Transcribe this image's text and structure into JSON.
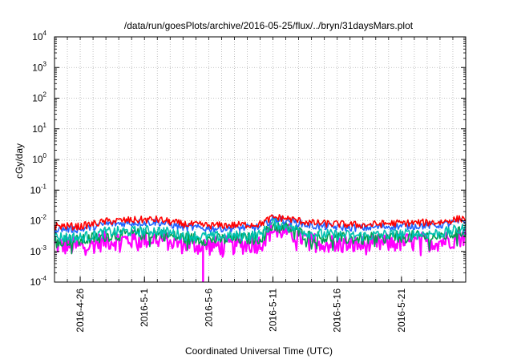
{
  "chart_data": {
    "type": "line",
    "title": "/data/run/goesPlots/archive/2016-05-25/flux/../bryn/31daysMars.plot",
    "xlabel": "Coordinated Universal Time (UTC)",
    "ylabel": "cGy/day",
    "yscale": "log",
    "ylim": [
      0.0001,
      10000
    ],
    "y_ticks": [
      {
        "base": "10",
        "exp": "-4",
        "value": 0.0001
      },
      {
        "base": "10",
        "exp": "-3",
        "value": 0.001
      },
      {
        "base": "10",
        "exp": "-2",
        "value": 0.01
      },
      {
        "base": "10",
        "exp": "-1",
        "value": 0.1
      },
      {
        "base": "10",
        "exp": "0",
        "value": 1
      },
      {
        "base": "10",
        "exp": "1",
        "value": 10
      },
      {
        "base": "10",
        "exp": "2",
        "value": 100
      },
      {
        "base": "10",
        "exp": "3",
        "value": 1000
      },
      {
        "base": "10",
        "exp": "4",
        "value": 10000
      }
    ],
    "xlim": [
      "2016-04-24",
      "2016-05-26"
    ],
    "x_ticks": [
      {
        "label": "2016-4-26",
        "date": "2016-04-26"
      },
      {
        "label": "2016-5-1",
        "date": "2016-05-01"
      },
      {
        "label": "2016-5-6",
        "date": "2016-05-06"
      },
      {
        "label": "2016-5-11",
        "date": "2016-05-11"
      },
      {
        "label": "2016-5-16",
        "date": "2016-05-16"
      },
      {
        "label": "2016-5-21",
        "date": "2016-05-21"
      }
    ],
    "grid": true,
    "legend": "none",
    "series": [
      {
        "color": "#ff0000",
        "x": [
          "2016-04-24",
          "2016-04-26",
          "2016-04-28",
          "2016-04-30",
          "2016-05-02",
          "2016-05-04",
          "2016-05-06",
          "2016-05-08",
          "2016-05-10",
          "2016-05-11",
          "2016-05-12",
          "2016-05-14",
          "2016-05-16",
          "2016-05-18",
          "2016-05-20",
          "2016-05-22",
          "2016-05-24",
          "2016-05-26"
        ],
        "values": [
          0.0068,
          0.0065,
          0.0095,
          0.0105,
          0.011,
          0.0078,
          0.007,
          0.0072,
          0.0078,
          0.013,
          0.012,
          0.0085,
          0.0078,
          0.0072,
          0.0082,
          0.0085,
          0.009,
          0.0125
        ]
      },
      {
        "color": "#1e62ff",
        "x": [
          "2016-04-24",
          "2016-04-26",
          "2016-04-28",
          "2016-04-30",
          "2016-05-02",
          "2016-05-04",
          "2016-05-06",
          "2016-05-08",
          "2016-05-10",
          "2016-05-11",
          "2016-05-12",
          "2016-05-14",
          "2016-05-16",
          "2016-05-18",
          "2016-05-20",
          "2016-05-22",
          "2016-05-24",
          "2016-05-26"
        ],
        "values": [
          0.0055,
          0.0052,
          0.0078,
          0.0085,
          0.009,
          0.0062,
          0.0056,
          0.0058,
          0.0062,
          0.0115,
          0.0105,
          0.0068,
          0.0062,
          0.0058,
          0.0066,
          0.0068,
          0.0072,
          0.01
        ]
      },
      {
        "color": "#00c0b0",
        "x": [
          "2016-04-24",
          "2016-04-26",
          "2016-04-28",
          "2016-04-30",
          "2016-05-02",
          "2016-05-04",
          "2016-05-06",
          "2016-05-08",
          "2016-05-10",
          "2016-05-11",
          "2016-05-12",
          "2016-05-14",
          "2016-05-16",
          "2016-05-18",
          "2016-05-20",
          "2016-05-22",
          "2016-05-24",
          "2016-05-26"
        ],
        "values": [
          0.003,
          0.0028,
          0.0042,
          0.0045,
          0.0048,
          0.0034,
          0.003,
          0.0032,
          0.0034,
          0.0085,
          0.007,
          0.0038,
          0.0034,
          0.0032,
          0.0036,
          0.0037,
          0.0039,
          0.0055
        ]
      },
      {
        "color": "#00a050",
        "x": [
          "2016-04-24",
          "2016-04-26",
          "2016-04-28",
          "2016-04-30",
          "2016-05-02",
          "2016-05-04",
          "2016-05-06",
          "2016-05-08",
          "2016-05-10",
          "2016-05-11",
          "2016-05-12",
          "2016-05-14",
          "2016-05-16",
          "2016-05-18",
          "2016-05-20",
          "2016-05-22",
          "2016-05-24",
          "2016-05-26"
        ],
        "values": [
          0.0024,
          0.0022,
          0.0033,
          0.0036,
          0.0038,
          0.0027,
          0.0024,
          0.0025,
          0.0027,
          0.007,
          0.006,
          0.003,
          0.0027,
          0.0025,
          0.0029,
          0.003,
          0.0031,
          0.0045
        ]
      },
      {
        "color": "#ff00ff",
        "x": [
          "2016-04-24",
          "2016-04-26",
          "2016-04-28",
          "2016-04-30",
          "2016-05-02",
          "2016-05-04",
          "2016-05-06",
          "2016-05-08",
          "2016-05-10",
          "2016-05-11",
          "2016-05-12",
          "2016-05-14",
          "2016-05-16",
          "2016-05-18",
          "2016-05-20",
          "2016-05-22",
          "2016-05-24",
          "2016-05-26"
        ],
        "values": [
          0.0016,
          0.0014,
          0.0022,
          0.0024,
          0.0026,
          0.0017,
          0.0015,
          0.0016,
          0.0018,
          0.0055,
          0.0045,
          0.002,
          0.0017,
          0.0016,
          0.0019,
          0.002,
          0.0021,
          0.0032
        ]
      }
    ]
  }
}
